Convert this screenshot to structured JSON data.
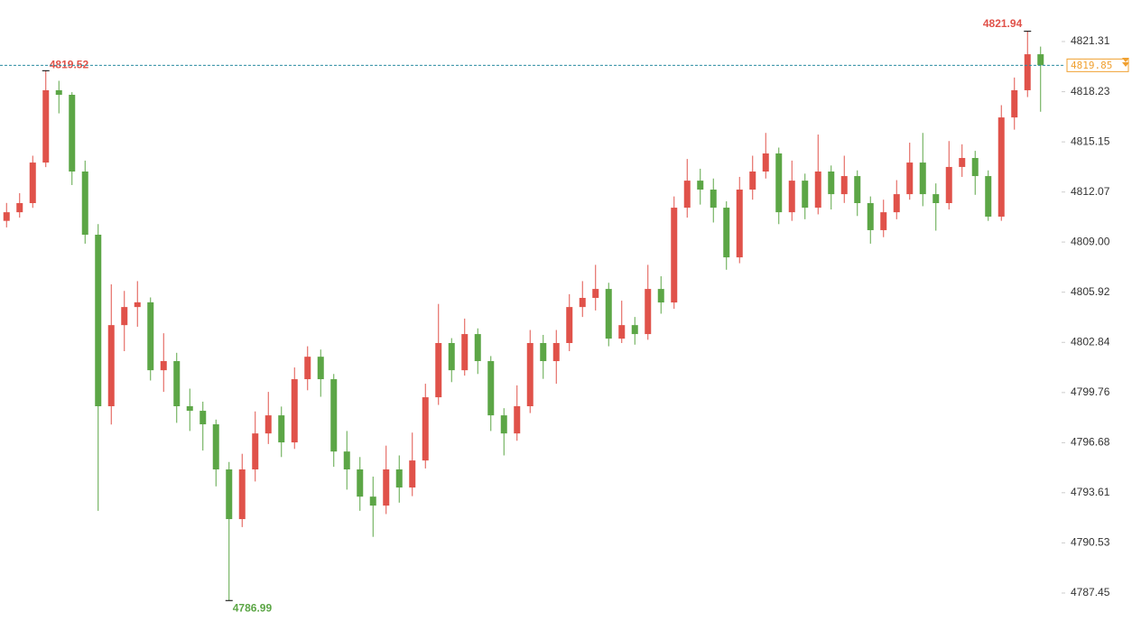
{
  "chart_data": {
    "type": "candlestick",
    "up_color": "#e0524a",
    "down_color": "#5ca646",
    "price_line": true,
    "price_line_color": "#2a8ca0",
    "price_box_color": "#f0a030",
    "open": [
      4810.3,
      4810.83,
      4811.39,
      4813.88,
      4818.32,
      4818.04,
      4813.33,
      4809.45,
      4798.92,
      4803.9,
      4805.01,
      4805.3,
      4801.13,
      4801.69,
      4798.92,
      4798.64,
      4797.81,
      4795.04,
      4791.99,
      4795.04,
      4797.25,
      4798.36,
      4796.7,
      4800.58,
      4801.96,
      4800.58,
      4796.14,
      4795.04,
      4793.37,
      4792.82,
      4795.04,
      4793.93,
      4795.59,
      4799.47,
      4802.8,
      4801.13,
      4803.35,
      4801.69,
      4798.36,
      4797.25,
      4798.92,
      4802.8,
      4801.69,
      4802.8,
      4805.01,
      4805.57,
      4806.12,
      4803.07,
      4803.9,
      4803.35,
      4806.12,
      4805.29,
      4811.11,
      4812.77,
      4812.22,
      4811.11,
      4808.06,
      4812.22,
      4813.33,
      4814.44,
      4810.83,
      4812.77,
      4811.11,
      4813.33,
      4811.94,
      4813.05,
      4811.39,
      4809.73,
      4810.83,
      4811.94,
      4813.88,
      4811.94,
      4811.39,
      4813.61,
      4814.16,
      4813.05,
      4810.56,
      4816.65,
      4818.32,
      4820.53
    ],
    "high": [
      4811.4,
      4812,
      4814.3,
      4819.52,
      4818.9,
      4818.2,
      4814,
      4810.1,
      4806.4,
      4806,
      4806.6,
      4805.6,
      4803.4,
      4802.2,
      4800,
      4799.2,
      4798.1,
      4795.5,
      4796,
      4798.6,
      4799.8,
      4798.9,
      4801.3,
      4802.6,
      4802.4,
      4800.9,
      4797.4,
      4795.8,
      4794.6,
      4796.5,
      4795.9,
      4797.3,
      4800.3,
      4805.2,
      4803.1,
      4804.3,
      4803.7,
      4802,
      4798.8,
      4800.2,
      4803.6,
      4803.3,
      4803.6,
      4805.8,
      4806.6,
      4807.6,
      4806.5,
      4805.4,
      4804.4,
      4807.6,
      4806.9,
      4811.8,
      4814.1,
      4813.5,
      4812.9,
      4811.5,
      4813,
      4814.3,
      4815.7,
      4814.8,
      4814,
      4813.2,
      4815.6,
      4813.7,
      4814.3,
      4813.4,
      4811.8,
      4811.6,
      4812.8,
      4815.1,
      4815.7,
      4812.6,
      4815.2,
      4815,
      4814.6,
      4813.4,
      4817.4,
      4819.1,
      4821.94,
      4821
    ],
    "low": [
      4809.9,
      4810.5,
      4811.1,
      4813.6,
      4816.9,
      4812.5,
      4808.9,
      4792.5,
      4797.8,
      4802.3,
      4803.8,
      4800.5,
      4799.8,
      4797.9,
      4797.4,
      4796.2,
      4794,
      4786.99,
      4791.5,
      4794.3,
      4796.6,
      4795.8,
      4796.3,
      4799.9,
      4799.5,
      4795.2,
      4793.8,
      4792.5,
      4790.9,
      4792.3,
      4793,
      4793.4,
      4795.1,
      4799,
      4800.4,
      4800.8,
      4800.9,
      4797.4,
      4795.9,
      4796.8,
      4798.5,
      4800.6,
      4800.3,
      4802.3,
      4804.4,
      4804.8,
      4802.6,
      4802.8,
      4802.7,
      4803,
      4804.6,
      4804.9,
      4810.5,
      4811.3,
      4810.2,
      4807.3,
      4807.7,
      4811.6,
      4812.9,
      4810.1,
      4810.3,
      4810.4,
      4810.7,
      4811,
      4811.4,
      4810.6,
      4808.9,
      4809.3,
      4810.4,
      4811.6,
      4811.2,
      4809.7,
      4811,
      4813,
      4811.9,
      4810.3,
      4810.3,
      4815.9,
      4817.9,
      4817
    ],
    "close": [
      4810.83,
      4811.39,
      4813.88,
      4818.32,
      4818.04,
      4813.33,
      4809.45,
      4798.92,
      4803.9,
      4805.01,
      4805.3,
      4801.13,
      4801.69,
      4798.92,
      4798.64,
      4797.81,
      4795.04,
      4791.99,
      4795.04,
      4797.25,
      4798.36,
      4796.7,
      4800.58,
      4801.96,
      4800.58,
      4796.14,
      4795.04,
      4793.37,
      4792.82,
      4795.04,
      4793.93,
      4795.59,
      4799.47,
      4802.8,
      4801.13,
      4803.35,
      4801.69,
      4798.36,
      4797.25,
      4798.92,
      4802.8,
      4801.69,
      4802.8,
      4805.01,
      4805.57,
      4806.12,
      4803.07,
      4803.9,
      4803.35,
      4806.12,
      4805.29,
      4811.11,
      4812.77,
      4812.22,
      4811.11,
      4808.06,
      4812.22,
      4813.33,
      4814.44,
      4810.83,
      4812.77,
      4811.11,
      4813.33,
      4811.94,
      4813.05,
      4811.39,
      4809.73,
      4810.83,
      4811.94,
      4813.88,
      4811.94,
      4811.39,
      4813.61,
      4814.16,
      4813.05,
      4810.56,
      4816.65,
      4818.32,
      4820.53,
      4819.85
    ],
    "ylim": [
      4785.12,
      4823.86
    ],
    "yticks": [
      4821.31,
      4818.23,
      4815.15,
      4812.07,
      {
        "value": 4809,
        "label": "4809.00"
      },
      4805.92,
      4802.84,
      4799.76,
      4796.68,
      4793.61,
      4790.53,
      4787.45
    ]
  }
}
